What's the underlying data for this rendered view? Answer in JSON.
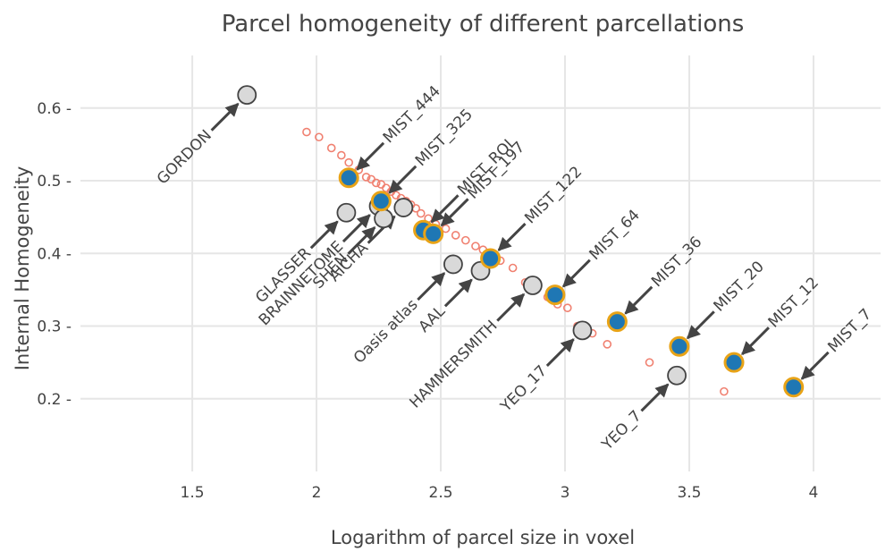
{
  "chart_data": {
    "type": "scatter",
    "title": "Parcel homogeneity of different parcellations",
    "xlabel": "Logarithm of parcel size in voxel",
    "ylabel": "Internal Homogeneity",
    "xlim": [
      1.05,
      4.27
    ],
    "ylim": [
      0.1,
      0.66
    ],
    "x_ticks": [
      1.5,
      2,
      2.5,
      3,
      3.5,
      4
    ],
    "x_tick_labels": [
      "1.5",
      "2",
      "2.5",
      "3",
      "3.5",
      "4"
    ],
    "y_ticks": [
      0.2,
      0.3,
      0.4,
      0.5,
      0.6
    ],
    "y_tick_labels": [
      "0.2",
      "0.3",
      "0.4",
      "0.5",
      "0.6"
    ],
    "grid": true,
    "colors": {
      "mist_fill": "#1f77b4",
      "mist_outline": "#e8a317",
      "other_fill": "#d9d9d9",
      "other_outline": "#444444",
      "small_points": "#f08070",
      "arrow": "#444444"
    },
    "series": [
      {
        "marker": "small-open-circle",
        "x": [
          1.96,
          2.01,
          2.06,
          2.1,
          2.13,
          2.17,
          2.2,
          2.22,
          2.24,
          2.26,
          2.28,
          2.3,
          2.32,
          2.34,
          2.36,
          2.38,
          2.4,
          2.42,
          2.45,
          2.48,
          2.52,
          2.56,
          2.6,
          2.64,
          2.67,
          2.7,
          2.74,
          2.79,
          2.84,
          2.88,
          2.93,
          2.97,
          3.01,
          3.05,
          3.11,
          3.17,
          3.34,
          3.64
        ],
        "y": [
          0.567,
          0.56,
          0.545,
          0.535,
          0.525,
          0.515,
          0.505,
          0.502,
          0.497,
          0.495,
          0.49,
          0.485,
          0.48,
          0.476,
          0.472,
          0.467,
          0.462,
          0.455,
          0.448,
          0.44,
          0.434,
          0.425,
          0.418,
          0.41,
          0.405,
          0.398,
          0.39,
          0.38,
          0.36,
          0.35,
          0.34,
          0.33,
          0.325,
          0.3,
          0.29,
          0.275,
          0.25,
          0.21
        ]
      },
      {
        "marker": "mist",
        "points": [
          {
            "label": "MIST_444",
            "x": 2.13,
            "y": 0.504
          },
          {
            "label": "MIST_325",
            "x": 2.26,
            "y": 0.472
          },
          {
            "label": "MIST_ROI",
            "x": 2.43,
            "y": 0.432
          },
          {
            "label": "MIST_197",
            "x": 2.47,
            "y": 0.427
          },
          {
            "label": "MIST_122",
            "x": 2.7,
            "y": 0.393
          },
          {
            "label": "MIST_64",
            "x": 2.96,
            "y": 0.343
          },
          {
            "label": "MIST_36",
            "x": 3.21,
            "y": 0.306
          },
          {
            "label": "MIST_20",
            "x": 3.46,
            "y": 0.272
          },
          {
            "label": "MIST_12",
            "x": 3.68,
            "y": 0.25
          },
          {
            "label": "MIST_7",
            "x": 3.92,
            "y": 0.216
          }
        ]
      },
      {
        "marker": "other",
        "points": [
          {
            "label": "GORDON",
            "x": 1.72,
            "y": 0.618
          },
          {
            "label": "GLASSER",
            "x": 2.12,
            "y": 0.456
          },
          {
            "label": "BRAINNETOME",
            "x": 2.25,
            "y": 0.465
          },
          {
            "label": "SHEN",
            "x": 2.27,
            "y": 0.448
          },
          {
            "label": "AICHA",
            "x": 2.35,
            "y": 0.463
          },
          {
            "label": "Oasis atlas",
            "x": 2.55,
            "y": 0.385
          },
          {
            "label": "AAL",
            "x": 2.66,
            "y": 0.376
          },
          {
            "label": "HAMMERSMITH",
            "x": 2.87,
            "y": 0.356
          },
          {
            "label": "YEO_17",
            "x": 3.07,
            "y": 0.294
          },
          {
            "label": "YEO_7",
            "x": 3.45,
            "y": 0.232
          }
        ]
      }
    ]
  }
}
